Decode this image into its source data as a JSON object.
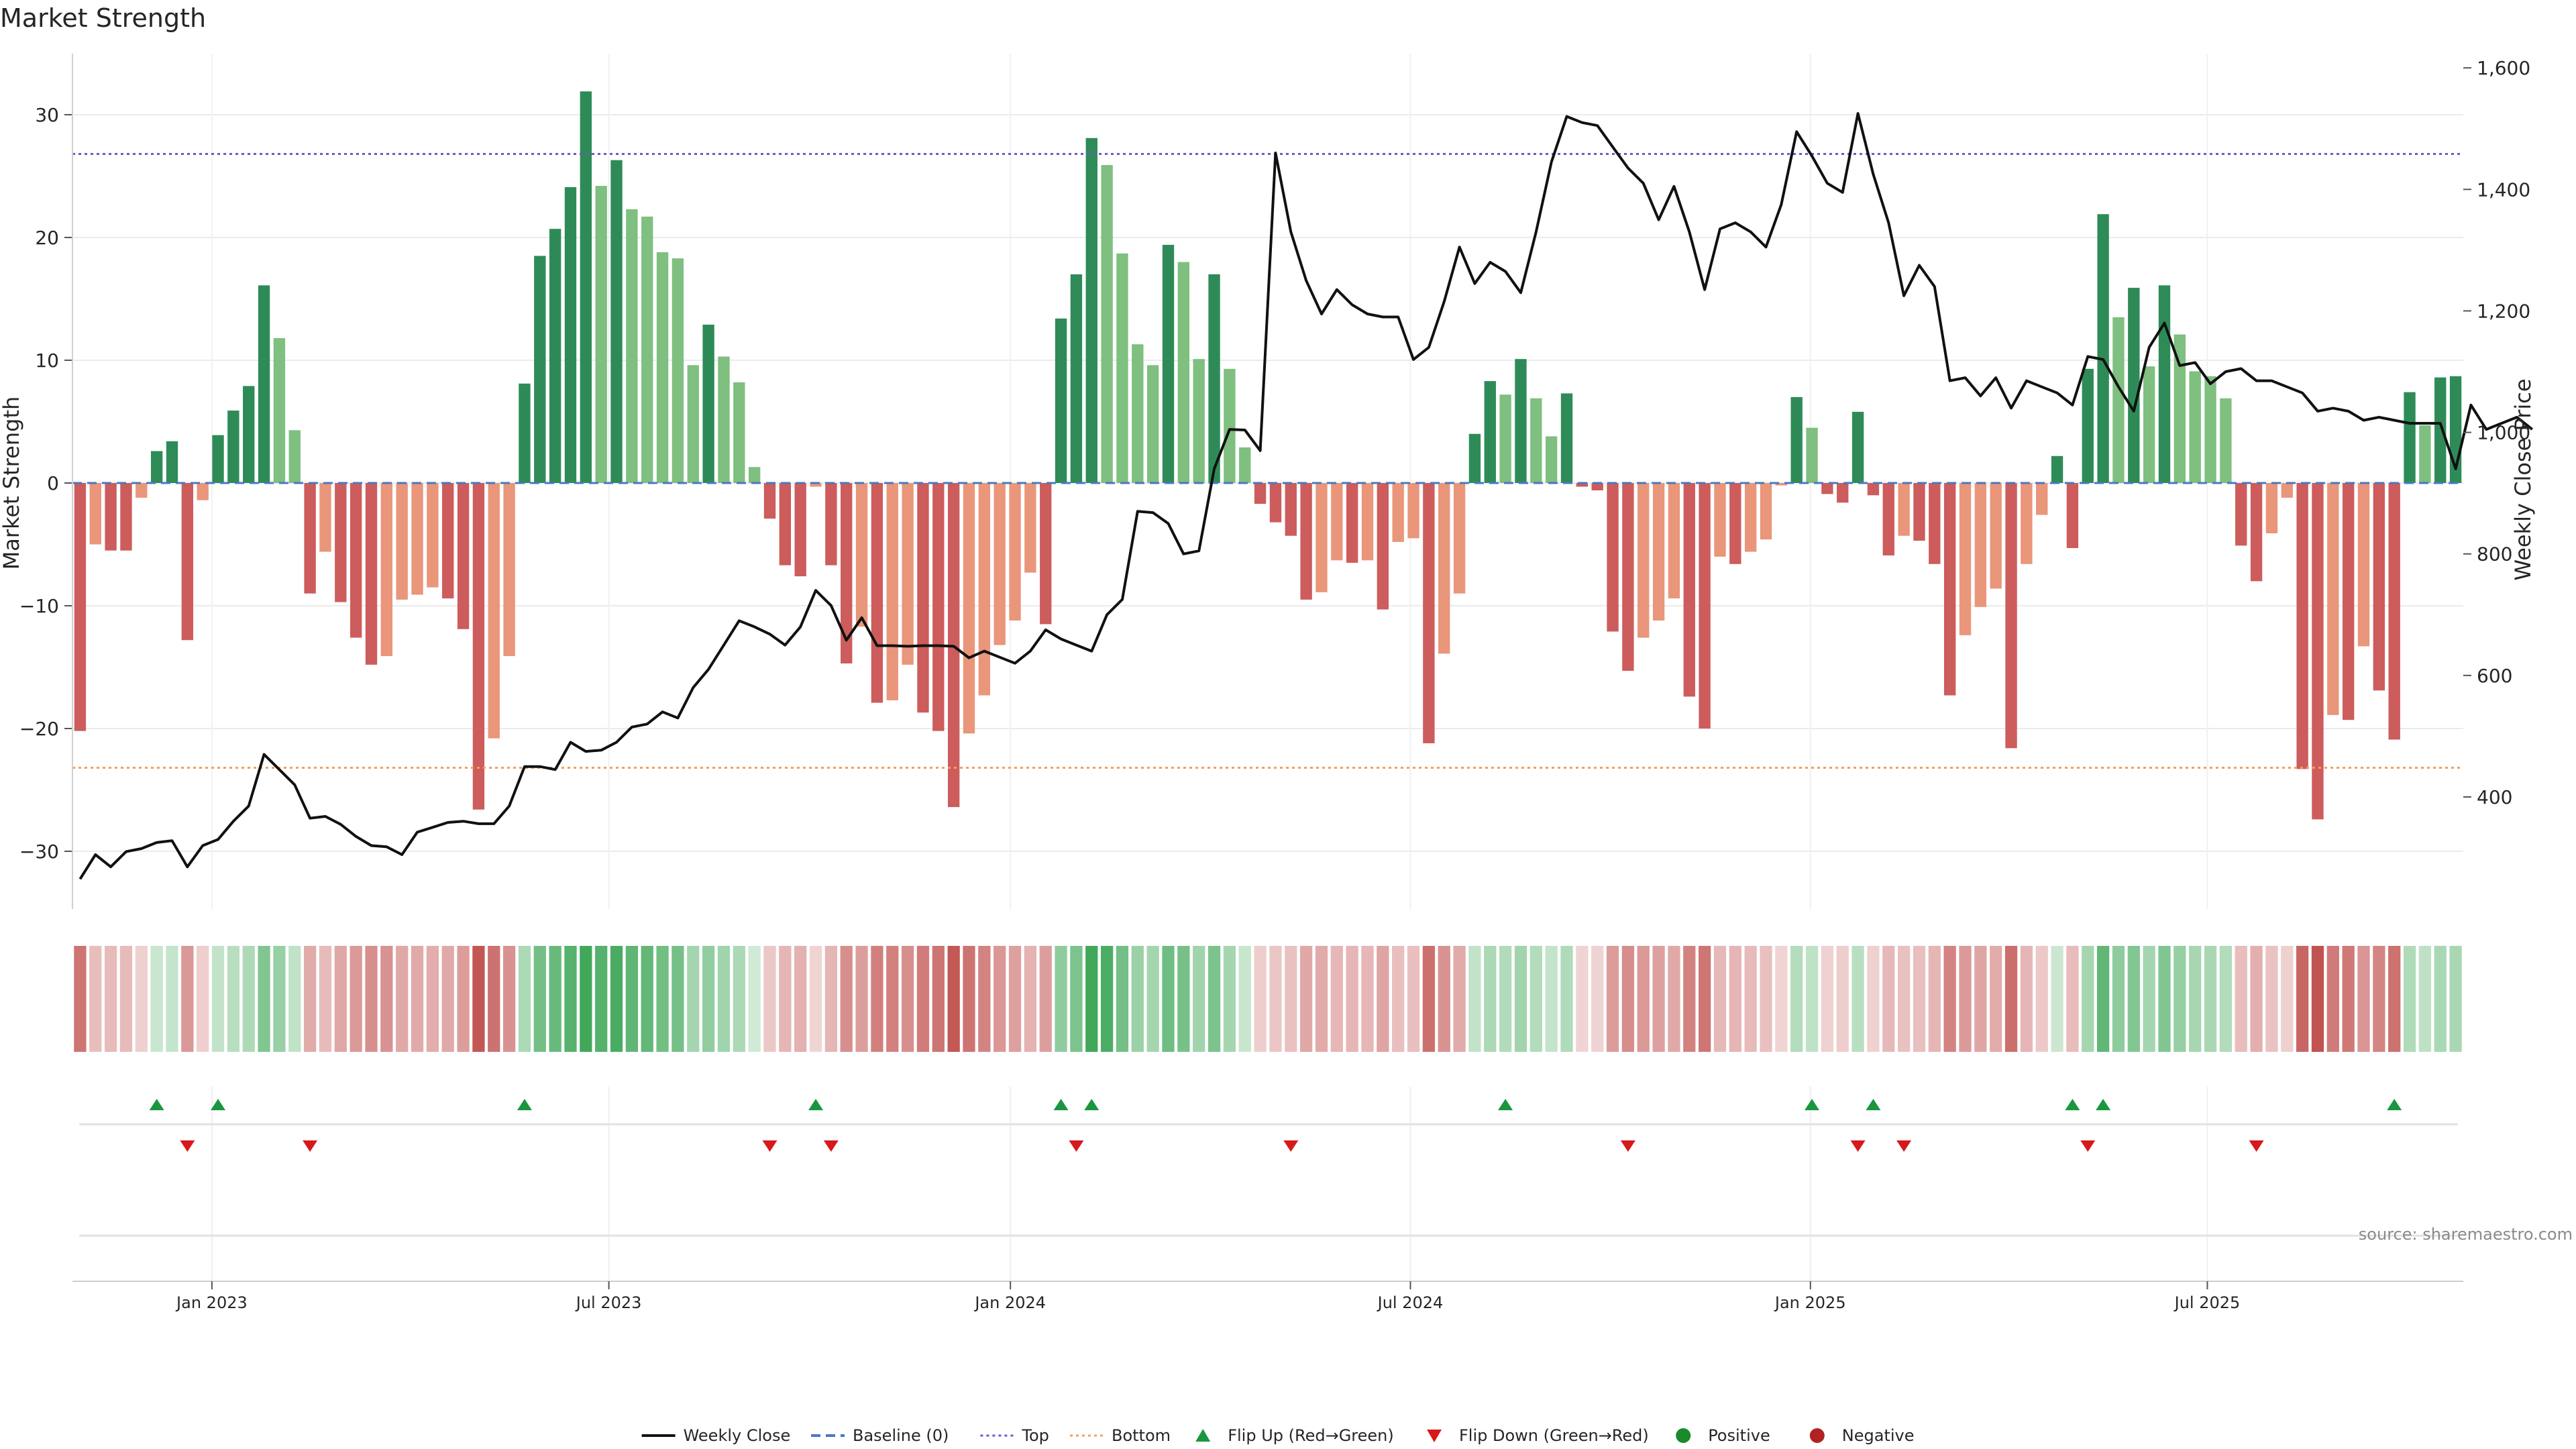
{
  "title": "Market Strength",
  "source": "source: sharemaestro.com",
  "chart_data": {
    "type": "bar",
    "title": "Market Strength",
    "ylabel": "Market Strength",
    "y2label": "Weekly Close Price",
    "ylim": [
      -35,
      35
    ],
    "y2lim": [
      200,
      1600
    ],
    "yticks": [
      -30,
      -20,
      -10,
      0,
      10,
      20,
      30
    ],
    "y2ticks": [
      400,
      600,
      800,
      1000,
      1200,
      1400,
      1600
    ],
    "y2tick_labels": [
      "400",
      "600",
      "800",
      "1,000",
      "1,200",
      "1,400",
      "1,600"
    ],
    "top_threshold": 26.8,
    "bottom_threshold": -23.2,
    "weeks": 157,
    "x_ticks": [
      {
        "label": "Jan 2023",
        "week": 9.1
      },
      {
        "label": "Jul 2023",
        "week": 35.0
      },
      {
        "label": "Jan 2024",
        "week": 61.2
      },
      {
        "label": "Jul 2024",
        "week": 87.3
      },
      {
        "label": "Jan 2025",
        "week": 113.4
      },
      {
        "label": "Jul 2025",
        "week": 139.3
      }
    ],
    "strength": [
      -20.2,
      -5,
      -5.5,
      -5.5,
      -1.2,
      2.6,
      3.4,
      -12.8,
      -1.4,
      3.9,
      5.9,
      7.9,
      16.1,
      11.8,
      4.3,
      -9,
      -5.6,
      -9.7,
      -12.6,
      -14.8,
      -14.1,
      -9.5,
      -9.1,
      -8.5,
      -9.4,
      -11.9,
      -26.6,
      -20.8,
      -14.1,
      8.1,
      18.5,
      20.7,
      24.1,
      31.9,
      24.2,
      26.3,
      22.3,
      21.7,
      18.8,
      18.3,
      9.6,
      12.9,
      10.3,
      8.2,
      1.3,
      -2.9,
      -6.7,
      -7.6,
      -0.3,
      -6.7,
      -14.7,
      -11.7,
      -17.9,
      -17.7,
      -14.8,
      -18.7,
      -20.2,
      -26.4,
      -20.4,
      -17.3,
      -13.2,
      -11.2,
      -7.3,
      -11.5,
      13.4,
      17,
      28.1,
      25.9,
      18.7,
      11.3,
      9.6,
      19.4,
      18,
      10.1,
      17,
      9.3,
      2.9,
      -1.7,
      -3.2,
      -4.3,
      -9.5,
      -8.9,
      -6.3,
      -6.5,
      -6.3,
      -10.3,
      -4.8,
      -4.5,
      -21.2,
      -13.9,
      -9,
      4,
      8.3,
      7.2,
      10.1,
      6.9,
      3.8,
      7.3,
      -0.3,
      -0.6,
      -12.1,
      -15.3,
      -12.6,
      -11.2,
      -9.4,
      -17.4,
      -20,
      -6,
      -6.6,
      -5.6,
      -4.6,
      -0.2,
      7,
      4.5,
      -0.9,
      -1.6,
      5.8,
      -1,
      -5.9,
      -4.3,
      -4.7,
      -6.6,
      -17.3,
      -12.4,
      -10.1,
      -8.6,
      -21.6,
      -6.6,
      -2.6,
      2.2,
      -5.3,
      9.3,
      21.9,
      13.5,
      15.9,
      9.5,
      16.1,
      12.1,
      9.1,
      8.7,
      6.9,
      -5.1,
      -8,
      -4.1,
      -1.2,
      -23.3,
      -27.4,
      -18.9,
      -19.3,
      -13.3,
      -16.9,
      -20.9,
      7.4,
      4.7,
      8.6,
      8.7
    ],
    "weekly_close": [
      265,
      305,
      285,
      310,
      315,
      325,
      328,
      285,
      320,
      330,
      360,
      385,
      470,
      445,
      420,
      365,
      368,
      355,
      335,
      320,
      318,
      305,
      342,
      350,
      358,
      360,
      356,
      356,
      385,
      450,
      450,
      445,
      490,
      475,
      477,
      490,
      515,
      520,
      540,
      530,
      580,
      610,
      650,
      690,
      680,
      668,
      650,
      680,
      740,
      715,
      658,
      695,
      649,
      649,
      648,
      649,
      649,
      648,
      629,
      640,
      630,
      620,
      640,
      675,
      660,
      650,
      640,
      700,
      725,
      870,
      868,
      850,
      800,
      805,
      940,
      1005,
      1004,
      970,
      1460,
      1330,
      1250,
      1195,
      1235,
      1210,
      1195,
      1190,
      1190,
      1120,
      1140,
      1215,
      1305,
      1245,
      1280,
      1265,
      1230,
      1330,
      1445,
      1520,
      1510,
      1505,
      1470,
      1435,
      1410,
      1350,
      1405,
      1330,
      1235,
      1335,
      1345,
      1330,
      1305,
      1375,
      1495,
      1455,
      1410,
      1395,
      1525,
      1425,
      1345,
      1225,
      1275,
      1240,
      1085,
      1090,
      1060,
      1090,
      1040,
      1085,
      1075,
      1065,
      1045,
      1125,
      1120,
      1075,
      1035,
      1140,
      1180,
      1110,
      1115,
      1080,
      1100,
      1105,
      1085,
      1085,
      1075,
      1065,
      1035,
      1040,
      1035,
      1020,
      1025,
      1020,
      1015,
      1015,
      1015,
      940,
      1045,
      1005,
      1015,
      1025,
      1005
    ],
    "flip_up_weeks": [
      5,
      9,
      29,
      48,
      64,
      66,
      93,
      113,
      117,
      130,
      132,
      151
    ],
    "flip_down_weeks": [
      7,
      15,
      45,
      49,
      65,
      79,
      101,
      116,
      119,
      131,
      142
    ],
    "colors": {
      "pos_strong": "#2e8b57",
      "pos_light": "#7fbf7f",
      "neg_strong": "#cd5c5c",
      "neg_light": "#e9967a",
      "line": "#111111",
      "top": "#6a5acd",
      "bottom": "#f0a060",
      "baseline": "#4a78c0",
      "flip_up": "#1a9641",
      "flip_down": "#d7191c",
      "positive_dot": "#1a8a2a",
      "negative_dot": "#b22222"
    },
    "legend": [
      {
        "label": "Weekly Close",
        "kind": "line"
      },
      {
        "label": "Baseline (0)",
        "kind": "dash"
      },
      {
        "label": "Top",
        "kind": "dot-purple"
      },
      {
        "label": "Bottom",
        "kind": "dot-orange"
      },
      {
        "label": "Flip Up (Red→Green)",
        "kind": "tri-up"
      },
      {
        "label": "Flip Down (Green→Red)",
        "kind": "tri-down"
      },
      {
        "label": "Positive",
        "kind": "dot-green"
      },
      {
        "label": "Negative",
        "kind": "dot-red"
      }
    ]
  }
}
